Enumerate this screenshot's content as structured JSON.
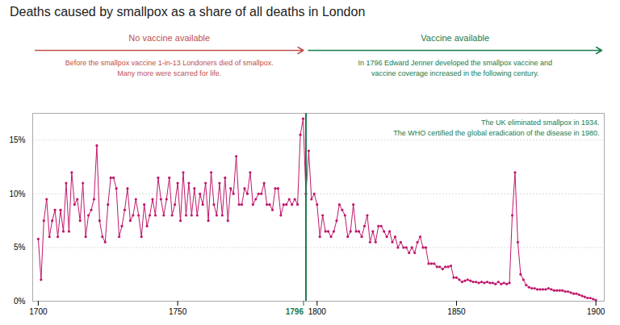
{
  "chart_data": {
    "type": "line",
    "title": "Deaths caused by smallpox as a share of all deaths in London",
    "x": [
      1700,
      1701,
      1702,
      1703,
      1704,
      1705,
      1706,
      1707,
      1708,
      1709,
      1710,
      1711,
      1712,
      1713,
      1714,
      1715,
      1716,
      1717,
      1718,
      1719,
      1720,
      1721,
      1722,
      1723,
      1724,
      1725,
      1726,
      1727,
      1728,
      1729,
      1730,
      1731,
      1732,
      1733,
      1734,
      1735,
      1736,
      1737,
      1738,
      1739,
      1740,
      1741,
      1742,
      1743,
      1744,
      1745,
      1746,
      1747,
      1748,
      1749,
      1750,
      1751,
      1752,
      1753,
      1754,
      1755,
      1756,
      1757,
      1758,
      1759,
      1760,
      1761,
      1762,
      1763,
      1764,
      1765,
      1766,
      1767,
      1768,
      1769,
      1770,
      1771,
      1772,
      1773,
      1774,
      1775,
      1776,
      1777,
      1778,
      1779,
      1780,
      1781,
      1782,
      1783,
      1784,
      1785,
      1786,
      1787,
      1788,
      1789,
      1790,
      1791,
      1792,
      1793,
      1794,
      1795,
      1796,
      1797,
      1798,
      1799,
      1800,
      1801,
      1802,
      1803,
      1804,
      1805,
      1806,
      1807,
      1808,
      1809,
      1810,
      1811,
      1812,
      1813,
      1814,
      1815,
      1816,
      1817,
      1818,
      1819,
      1820,
      1821,
      1822,
      1823,
      1824,
      1825,
      1826,
      1827,
      1828,
      1829,
      1830,
      1831,
      1832,
      1833,
      1834,
      1835,
      1836,
      1837,
      1838,
      1839,
      1840,
      1841,
      1842,
      1843,
      1844,
      1845,
      1846,
      1847,
      1848,
      1849,
      1850,
      1851,
      1852,
      1853,
      1854,
      1855,
      1856,
      1857,
      1858,
      1859,
      1860,
      1861,
      1862,
      1863,
      1864,
      1865,
      1866,
      1867,
      1868,
      1869,
      1870,
      1871,
      1872,
      1873,
      1874,
      1875,
      1876,
      1877,
      1878,
      1879,
      1880,
      1881,
      1882,
      1883,
      1884,
      1885,
      1886,
      1887,
      1888,
      1889,
      1890,
      1891,
      1892,
      1893,
      1894,
      1895,
      1896,
      1897,
      1898,
      1899,
      1900
    ],
    "values": [
      0.058,
      0.02,
      0.075,
      0.095,
      0.06,
      0.075,
      0.085,
      0.06,
      0.085,
      0.065,
      0.11,
      0.065,
      0.12,
      0.09,
      0.095,
      0.075,
      0.11,
      0.06,
      0.08,
      0.085,
      0.095,
      0.145,
      0.075,
      0.06,
      0.055,
      0.09,
      0.115,
      0.115,
      0.105,
      0.06,
      0.07,
      0.085,
      0.105,
      0.075,
      0.08,
      0.095,
      0.08,
      0.06,
      0.09,
      0.07,
      0.08,
      0.095,
      0.08,
      0.115,
      0.095,
      0.08,
      0.095,
      0.115,
      0.08,
      0.09,
      0.11,
      0.075,
      0.12,
      0.08,
      0.11,
      0.08,
      0.105,
      0.08,
      0.1,
      0.09,
      0.11,
      0.075,
      0.12,
      0.09,
      0.08,
      0.11,
      0.08,
      0.115,
      0.075,
      0.105,
      0.1,
      0.135,
      0.09,
      0.09,
      0.105,
      0.1,
      0.12,
      0.09,
      0.095,
      0.1,
      0.1,
      0.11,
      0.09,
      0.09,
      0.085,
      0.105,
      0.105,
      0.08,
      0.09,
      0.09,
      0.095,
      0.09,
      0.095,
      0.09,
      0.155,
      0.17,
      0.1,
      0.14,
      0.095,
      0.1,
      0.09,
      0.06,
      0.08,
      0.065,
      0.065,
      0.06,
      0.065,
      0.075,
      0.09,
      0.085,
      0.08,
      0.06,
      0.065,
      0.09,
      0.065,
      0.065,
      0.06,
      0.07,
      0.08,
      0.055,
      0.065,
      0.055,
      0.07,
      0.07,
      0.065,
      0.06,
      0.065,
      0.055,
      0.06,
      0.05,
      0.055,
      0.05,
      0.05,
      0.045,
      0.05,
      0.045,
      0.055,
      0.06,
      0.05,
      0.05,
      0.035,
      0.035,
      0.035,
      0.032,
      0.032,
      0.03,
      0.032,
      0.032,
      0.033,
      0.022,
      0.022,
      0.02,
      0.018,
      0.019,
      0.02,
      0.019,
      0.018,
      0.018,
      0.017,
      0.018,
      0.017,
      0.018,
      0.017,
      0.017,
      0.016,
      0.018,
      0.016,
      0.017,
      0.016,
      0.017,
      0.08,
      0.12,
      0.055,
      0.025,
      0.02,
      0.015,
      0.013,
      0.012,
      0.012,
      0.011,
      0.011,
      0.011,
      0.011,
      0.012,
      0.011,
      0.01,
      0.01,
      0.01,
      0.01,
      0.009,
      0.009,
      0.008,
      0.007,
      0.007,
      0.006,
      0.005,
      0.004,
      0.003,
      0.003,
      0.002,
      0.001
    ],
    "color": "#c0176c",
    "marker": "circle",
    "xlim": [
      1698,
      1903
    ],
    "ylim": [
      0,
      0.175
    ],
    "xticks": [
      1700,
      1750,
      1796,
      1800,
      1850,
      1900
    ],
    "yticks": [
      {
        "value": 0,
        "label": "0%"
      },
      {
        "value": 0.05,
        "label": "5%"
      },
      {
        "value": 0.1,
        "label": "10%"
      },
      {
        "value": 0.15,
        "label": "15%"
      }
    ],
    "grid": true,
    "vlines": [
      {
        "x": 1796,
        "color": "#1a7a4a"
      }
    ],
    "annotations": [
      {
        "text": "No vaccine available",
        "color": "#c0504d"
      },
      {
        "text": "Before the smallpox vaccine 1-in-13 Londoners died of smallpox.\nMany more were scarred for life.",
        "color": "#c0504d"
      },
      {
        "text": "Vaccine available",
        "color": "#1a7a4a"
      },
      {
        "text": "In 1796 Edward Jenner developed the smallpox vaccine and\nvaccine coverage increased in the following century.",
        "color": "#1a7a4a"
      },
      {
        "text": "The UK eliminated smallpox in 1934.\nThe WHO certified the global eradication of the disease in 1980.",
        "color": "#1a7a4a"
      }
    ]
  }
}
